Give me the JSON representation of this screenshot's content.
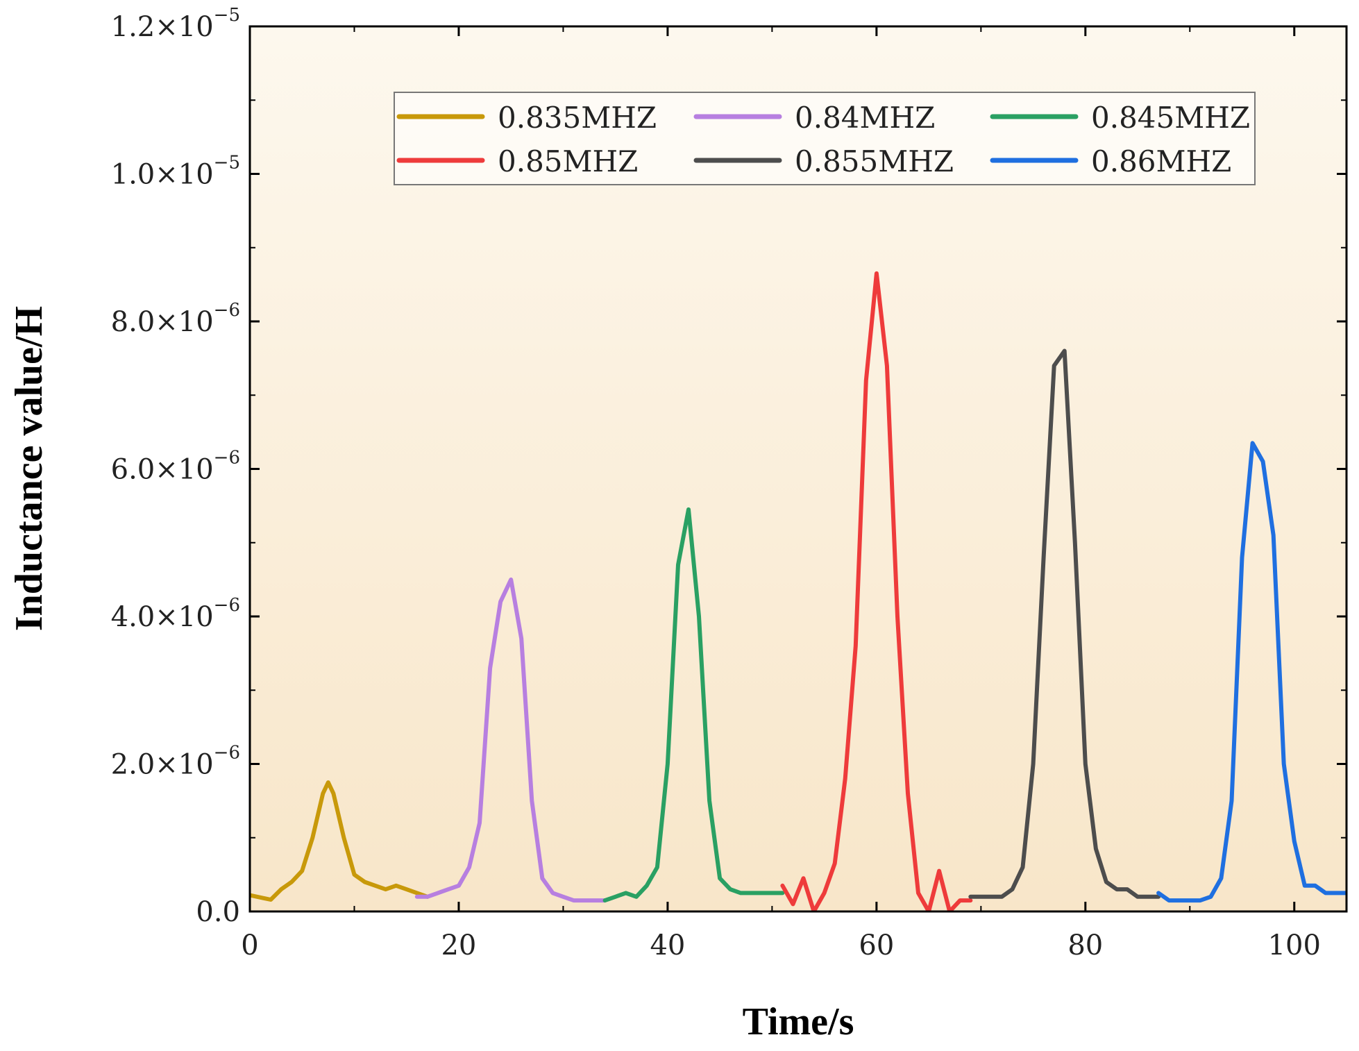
{
  "chart_data": {
    "type": "line",
    "title": "",
    "xlabel": "Time/s",
    "ylabel": "Inductance value/H",
    "xlim": [
      0,
      105
    ],
    "ylim": [
      0,
      1.2e-05
    ],
    "xticks": [
      {
        "value": 0,
        "label": "0"
      },
      {
        "value": 20,
        "label": "20"
      },
      {
        "value": 40,
        "label": "40"
      },
      {
        "value": 60,
        "label": "60"
      },
      {
        "value": 80,
        "label": "80"
      },
      {
        "value": 100,
        "label": "100"
      }
    ],
    "yticks": [
      {
        "value": 0,
        "mant": "0.0",
        "exp": ""
      },
      {
        "value": 2e-06,
        "mant": "2.0×10",
        "exp": "−6"
      },
      {
        "value": 4e-06,
        "mant": "4.0×10",
        "exp": "−6"
      },
      {
        "value": 6e-06,
        "mant": "6.0×10",
        "exp": "−6"
      },
      {
        "value": 8e-06,
        "mant": "8.0×10",
        "exp": "−6"
      },
      {
        "value": 1e-05,
        "mant": "1.0×10",
        "exp": "−5"
      },
      {
        "value": 1.2e-05,
        "mant": "1.2×10",
        "exp": "−5"
      }
    ],
    "grid": false,
    "legend_position": "top",
    "background_gradient": [
      "#fdf8ee",
      "#f8e6c9"
    ],
    "series": [
      {
        "name": "0.835MHZ",
        "color": "#c8990a",
        "x": [
          0,
          2,
          3,
          4,
          5,
          6,
          7,
          7.5,
          8,
          9,
          10,
          11,
          12,
          13,
          14,
          15,
          16,
          17
        ],
        "y": [
          2.2e-07,
          1.6e-07,
          3e-07,
          4e-07,
          5.5e-07,
          1e-06,
          1.6e-06,
          1.75e-06,
          1.6e-06,
          1e-06,
          5e-07,
          4e-07,
          3.5e-07,
          3e-07,
          3.5e-07,
          3e-07,
          2.5e-07,
          2e-07
        ]
      },
      {
        "name": "0.84MHZ",
        "color": "#b77fe0",
        "x": [
          16,
          17,
          18,
          19,
          20,
          21,
          22,
          23,
          24,
          25,
          26,
          27,
          28,
          29,
          30,
          31,
          32,
          33,
          34
        ],
        "y": [
          2e-07,
          2e-07,
          2.5e-07,
          3e-07,
          3.5e-07,
          6e-07,
          1.2e-06,
          3.3e-06,
          4.2e-06,
          4.5e-06,
          3.7e-06,
          1.5e-06,
          4.5e-07,
          2.5e-07,
          2e-07,
          1.5e-07,
          1.5e-07,
          1.5e-07,
          1.5e-07
        ]
      },
      {
        "name": "0.845MHZ",
        "color": "#2aa063",
        "x": [
          34,
          35,
          36,
          37,
          38,
          39,
          40,
          41,
          42,
          43,
          44,
          45,
          46,
          47,
          48,
          49,
          50,
          51
        ],
        "y": [
          1.5e-07,
          2e-07,
          2.5e-07,
          2e-07,
          3.5e-07,
          6e-07,
          2e-06,
          4.7e-06,
          5.45e-06,
          4e-06,
          1.5e-06,
          4.5e-07,
          3e-07,
          2.5e-07,
          2.5e-07,
          2.5e-07,
          2.5e-07,
          2.5e-07
        ]
      },
      {
        "name": "0.85MHZ",
        "color": "#ee3b3b",
        "x": [
          51,
          52,
          53,
          54,
          55,
          56,
          57,
          58,
          59,
          60,
          61,
          62,
          63,
          64,
          65,
          66,
          67,
          68,
          69
        ],
        "y": [
          3.5e-07,
          1e-07,
          4.5e-07,
          0,
          2.5e-07,
          6.5e-07,
          1.8e-06,
          3.6e-06,
          7.2e-06,
          8.65e-06,
          7.4e-06,
          4e-06,
          1.6e-06,
          2.5e-07,
          0,
          5.5e-07,
          0,
          1.5e-07,
          1.5e-07
        ]
      },
      {
        "name": "0.855MHZ",
        "color": "#4d4d4d",
        "x": [
          69,
          70,
          71,
          72,
          73,
          74,
          75,
          76,
          77,
          78,
          79,
          80,
          81,
          82,
          83,
          84,
          85,
          86,
          87
        ],
        "y": [
          2e-07,
          2e-07,
          2e-07,
          2e-07,
          3e-07,
          6e-07,
          2e-06,
          4.8e-06,
          7.4e-06,
          7.6e-06,
          5e-06,
          2e-06,
          8.5e-07,
          4e-07,
          3e-07,
          3e-07,
          2e-07,
          2e-07,
          2e-07
        ]
      },
      {
        "name": "0.86MHZ",
        "color": "#1f6fe0",
        "x": [
          87,
          88,
          89,
          90,
          91,
          92,
          93,
          94,
          95,
          96,
          97,
          98,
          99,
          100,
          101,
          102,
          103,
          104,
          105
        ],
        "y": [
          2.5e-07,
          1.5e-07,
          1.5e-07,
          1.5e-07,
          1.5e-07,
          2e-07,
          4.5e-07,
          1.5e-06,
          4.8e-06,
          6.35e-06,
          6.1e-06,
          5.1e-06,
          2e-06,
          9.5e-07,
          3.5e-07,
          3.5e-07,
          2.5e-07,
          2.5e-07,
          2.5e-07
        ]
      }
    ]
  }
}
